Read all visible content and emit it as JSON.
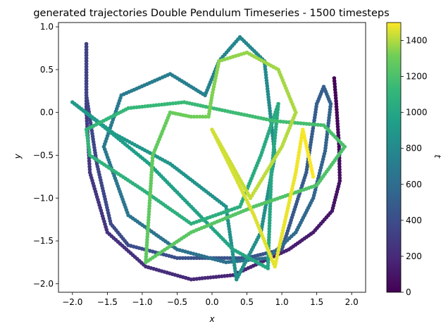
{
  "chart_data": {
    "type": "scatter",
    "title": "generated trajectories Double Pendulum Timeseries - 1500 timesteps",
    "xlabel": "x",
    "ylabel": "y",
    "xlim": [
      -2.2,
      2.2
    ],
    "ylim": [
      -2.1,
      1.05
    ],
    "xticks": [
      "−2.0",
      "−1.5",
      "−1.0",
      "−0.5",
      "0.0",
      "0.5",
      "1.0",
      "1.5",
      "2.0"
    ],
    "xtick_values": [
      -2.0,
      -1.5,
      -1.0,
      -0.5,
      0.0,
      0.5,
      1.0,
      1.5,
      2.0
    ],
    "yticks": [
      "1.0",
      "0.5",
      "0.0",
      "−0.5",
      "−1.0",
      "−1.5",
      "−2.0"
    ],
    "ytick_values": [
      1.0,
      0.5,
      0.0,
      -0.5,
      -1.0,
      -1.5,
      -2.0
    ],
    "grid": false,
    "colorbar": {
      "label": "t",
      "range": [
        0,
        1500
      ],
      "ticks": [
        "0",
        "200",
        "400",
        "600",
        "800",
        "1000",
        "1200",
        "1400"
      ],
      "tick_values": [
        0,
        200,
        400,
        600,
        800,
        1000,
        1200,
        1400
      ],
      "colormap": "viridis"
    },
    "trajectory": [
      {
        "t": 0,
        "x": 1.75,
        "y": 0.4
      },
      {
        "t": 25,
        "x": 1.78,
        "y": 0.1
      },
      {
        "t": 50,
        "x": 1.82,
        "y": -0.4
      },
      {
        "t": 75,
        "x": 1.83,
        "y": -0.8
      },
      {
        "t": 100,
        "x": 1.72,
        "y": -1.15
      },
      {
        "t": 125,
        "x": 1.45,
        "y": -1.4
      },
      {
        "t": 150,
        "x": 1.1,
        "y": -1.6
      },
      {
        "t": 175,
        "x": 0.3,
        "y": -1.9
      },
      {
        "t": 200,
        "x": -0.3,
        "y": -1.95
      },
      {
        "t": 225,
        "x": -0.95,
        "y": -1.8
      },
      {
        "t": 250,
        "x": -1.5,
        "y": -1.4
      },
      {
        "t": 275,
        "x": -1.75,
        "y": -0.7
      },
      {
        "t": 300,
        "x": -1.8,
        "y": 0.0
      },
      {
        "t": 320,
        "x": -1.8,
        "y": 0.8
      },
      {
        "t": 340,
        "x": -1.8,
        "y": 0.2
      },
      {
        "t": 360,
        "x": -1.65,
        "y": -0.6
      },
      {
        "t": 380,
        "x": -1.45,
        "y": -1.3
      },
      {
        "t": 400,
        "x": -1.2,
        "y": -1.55
      },
      {
        "t": 420,
        "x": -0.5,
        "y": -1.7
      },
      {
        "t": 440,
        "x": 0.5,
        "y": -1.7
      },
      {
        "t": 460,
        "x": 1.0,
        "y": -1.6
      },
      {
        "t": 480,
        "x": 1.35,
        "y": -0.7
      },
      {
        "t": 500,
        "x": 1.5,
        "y": 0.1
      },
      {
        "t": 510,
        "x": 1.6,
        "y": 0.3
      },
      {
        "t": 520,
        "x": 1.7,
        "y": 0.1
      },
      {
        "t": 540,
        "x": 1.62,
        "y": -0.45
      },
      {
        "t": 560,
        "x": 1.45,
        "y": -1.0
      },
      {
        "t": 580,
        "x": 1.2,
        "y": -1.4
      },
      {
        "t": 600,
        "x": 0.8,
        "y": -1.7
      },
      {
        "t": 620,
        "x": 0.2,
        "y": -1.75
      },
      {
        "t": 640,
        "x": -0.5,
        "y": -1.6
      },
      {
        "t": 660,
        "x": -1.2,
        "y": -1.2
      },
      {
        "t": 680,
        "x": -1.55,
        "y": -0.4
      },
      {
        "t": 700,
        "x": -1.3,
        "y": 0.2
      },
      {
        "t": 720,
        "x": -0.6,
        "y": 0.45
      },
      {
        "t": 740,
        "x": -0.1,
        "y": 0.2
      },
      {
        "t": 760,
        "x": 0.1,
        "y": 0.6
      },
      {
        "t": 780,
        "x": 0.4,
        "y": 0.88
      },
      {
        "t": 800,
        "x": 0.75,
        "y": 0.6
      },
      {
        "t": 820,
        "x": 0.9,
        "y": -0.5
      },
      {
        "t": 840,
        "x": 0.7,
        "y": -1.4
      },
      {
        "t": 850,
        "x": 0.35,
        "y": -1.95
      },
      {
        "t": 860,
        "x": 0.2,
        "y": -1.1
      },
      {
        "t": 880,
        "x": -0.6,
        "y": -0.6
      },
      {
        "t": 900,
        "x": -1.4,
        "y": -0.25
      },
      {
        "t": 910,
        "x": -2.0,
        "y": 0.12
      },
      {
        "t": 930,
        "x": -1.5,
        "y": -0.2
      },
      {
        "t": 950,
        "x": -0.9,
        "y": -0.6
      },
      {
        "t": 970,
        "x": -0.3,
        "y": -1.1
      },
      {
        "t": 990,
        "x": 0.3,
        "y": -1.6
      },
      {
        "t": 1000,
        "x": 0.8,
        "y": -1.82
      },
      {
        "t": 1010,
        "x": 0.85,
        "y": -0.7
      },
      {
        "t": 1020,
        "x": 0.95,
        "y": 0.1
      },
      {
        "t": 1035,
        "x": 0.7,
        "y": -0.5
      },
      {
        "t": 1050,
        "x": 0.4,
        "y": -1.1
      },
      {
        "t": 1065,
        "x": -0.3,
        "y": -1.3
      },
      {
        "t": 1080,
        "x": -1.0,
        "y": -0.9
      },
      {
        "t": 1095,
        "x": -1.75,
        "y": -0.5
      },
      {
        "t": 1110,
        "x": -1.8,
        "y": -0.2
      },
      {
        "t": 1125,
        "x": -1.2,
        "y": 0.05
      },
      {
        "t": 1140,
        "x": -0.4,
        "y": 0.12
      },
      {
        "t": 1155,
        "x": 0.3,
        "y": 0.0
      },
      {
        "t": 1170,
        "x": 0.9,
        "y": -0.1
      },
      {
        "t": 1185,
        "x": 1.6,
        "y": -0.15
      },
      {
        "t": 1200,
        "x": 1.9,
        "y": -0.4
      },
      {
        "t": 1215,
        "x": 1.5,
        "y": -0.85
      },
      {
        "t": 1230,
        "x": 0.6,
        "y": -1.1
      },
      {
        "t": 1245,
        "x": -0.3,
        "y": -1.4
      },
      {
        "t": 1260,
        "x": -0.95,
        "y": -1.75
      },
      {
        "t": 1275,
        "x": -0.85,
        "y": -0.5
      },
      {
        "t": 1290,
        "x": -0.6,
        "y": 0.0
      },
      {
        "t": 1305,
        "x": -0.3,
        "y": -0.05
      },
      {
        "t": 1320,
        "x": -0.05,
        "y": -0.05
      },
      {
        "t": 1335,
        "x": 0.0,
        "y": 0.2
      },
      {
        "t": 1350,
        "x": 0.1,
        "y": 0.6
      },
      {
        "t": 1365,
        "x": 0.5,
        "y": 0.7
      },
      {
        "t": 1380,
        "x": 0.95,
        "y": 0.5
      },
      {
        "t": 1395,
        "x": 1.2,
        "y": 0.0
      },
      {
        "t": 1410,
        "x": 1.0,
        "y": -0.4
      },
      {
        "t": 1425,
        "x": 0.55,
        "y": -1.0
      },
      {
        "t": 1440,
        "x": 0.0,
        "y": -0.2
      },
      {
        "t": 1455,
        "x": 0.6,
        "y": -1.2
      },
      {
        "t": 1470,
        "x": 0.9,
        "y": -1.8
      },
      {
        "t": 1480,
        "x": 1.2,
        "y": -0.7
      },
      {
        "t": 1490,
        "x": 1.3,
        "y": -0.2
      },
      {
        "t": 1500,
        "x": 1.45,
        "y": -0.75
      }
    ]
  }
}
